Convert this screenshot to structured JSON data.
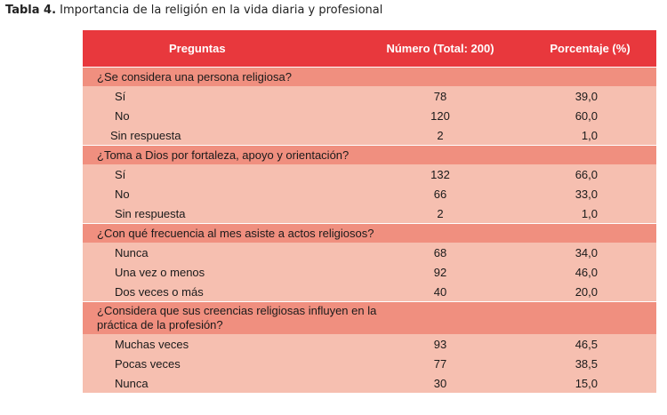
{
  "caption": {
    "label": "Tabla 4.",
    "text": "Importancia de la religión en la vida diaria y profesional"
  },
  "table": {
    "headers": [
      "Preguntas",
      "Número (Total: 200)",
      "Porcentaje (%)"
    ],
    "groups": [
      {
        "question": "¿Se considera una persona religiosa?",
        "rows": [
          {
            "label": "Sí",
            "number": "78",
            "percent": "39,0"
          },
          {
            "label": "No",
            "number": "120",
            "percent": "60,0"
          },
          {
            "label": "Sin respuesta",
            "number": "2",
            "percent": "1,0"
          }
        ]
      },
      {
        "question": "¿Toma a Dios por fortaleza, apoyo y orientación?",
        "rows": [
          {
            "label": "Sí",
            "number": "132",
            "percent": "66,0"
          },
          {
            "label": "No",
            "number": "66",
            "percent": "33,0"
          },
          {
            "label": "Sin respuesta",
            "number": "2",
            "percent": "1,0"
          }
        ]
      },
      {
        "question": "¿Con qué frecuencia al mes asiste a actos religiosos?",
        "rows": [
          {
            "label": "Nunca",
            "number": "68",
            "percent": "34,0"
          },
          {
            "label": "Una vez o menos",
            "number": "92",
            "percent": "46,0"
          },
          {
            "label": "Dos veces o más",
            "number": "40",
            "percent": "20,0"
          }
        ]
      },
      {
        "question": "¿Considera que sus creencias religiosas influyen en la práctica de la profesión?",
        "rows": [
          {
            "label": "Muchas veces",
            "number": "93",
            "percent": "46,5"
          },
          {
            "label": "Pocas veces",
            "number": "77",
            "percent": "38,5"
          },
          {
            "label": "Nunca",
            "number": "30",
            "percent": "15,0"
          }
        ]
      }
    ]
  }
}
